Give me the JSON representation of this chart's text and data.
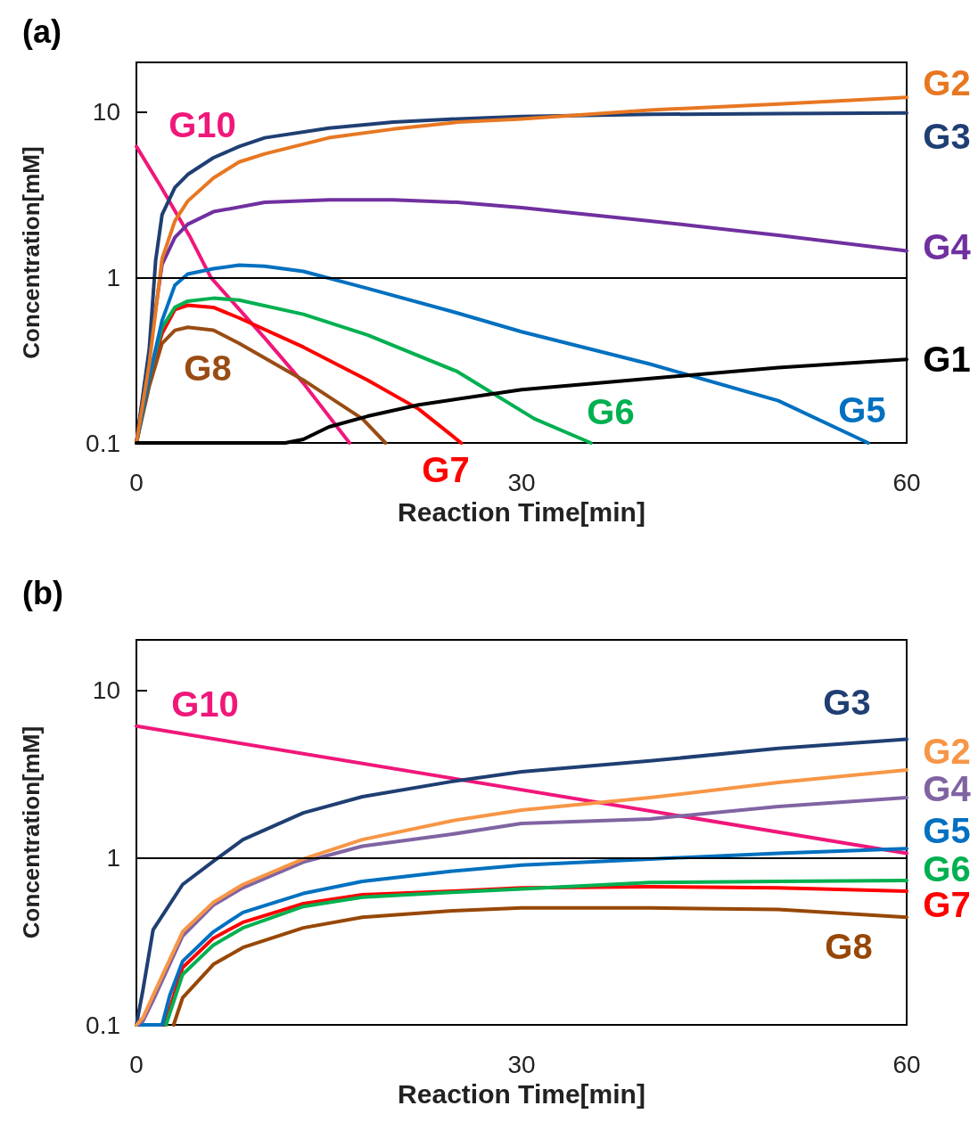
{
  "chart_data": [
    {
      "type": "line",
      "title": "(a)",
      "xlabel": "Reaction Time[min]",
      "ylabel": "Concentration[mM]",
      "xlim": [
        0,
        60
      ],
      "xticks": [
        0,
        30,
        60
      ],
      "ylim": [
        0.1,
        20
      ],
      "yticks": [
        0.1,
        1,
        10
      ],
      "log": "y",
      "grid": false,
      "marker": "none",
      "line_style": "solid",
      "ref_lines": [
        {
          "axis": "y",
          "value": 1,
          "color": "#000000"
        }
      ],
      "series": [
        {
          "name": "G1",
          "color": "#000000",
          "x": [
            0,
            11.6,
            13,
            15,
            18,
            22,
            30,
            40,
            50,
            60
          ],
          "values": [
            0.1,
            0.1,
            0.105,
            0.125,
            0.145,
            0.17,
            0.21,
            0.245,
            0.285,
            0.32
          ]
        },
        {
          "name": "G2",
          "color": "#e87722",
          "x": [
            0,
            1,
            2,
            3,
            4,
            6,
            8,
            10,
            15,
            20,
            25,
            30,
            40,
            50,
            60
          ],
          "values": [
            0.1,
            0.3,
            1.3,
            2.2,
            2.9,
            4.0,
            5.0,
            5.6,
            7.0,
            7.9,
            8.7,
            9.1,
            10.3,
            11.2,
            12.3
          ]
        },
        {
          "name": "G3",
          "color": "#1f3f73",
          "x": [
            0,
            1,
            1.5,
            2,
            3,
            4,
            6,
            8,
            10,
            15,
            20,
            25,
            30,
            40,
            50,
            60
          ],
          "values": [
            0.1,
            0.37,
            1.27,
            2.4,
            3.5,
            4.2,
            5.3,
            6.2,
            7.0,
            8.0,
            8.7,
            9.1,
            9.4,
            9.7,
            9.8,
            9.9
          ]
        },
        {
          "name": "G4",
          "color": "#7030a0",
          "x": [
            0,
            1,
            2,
            3,
            4,
            6,
            10,
            15,
            20,
            25,
            30,
            40,
            50,
            60
          ],
          "values": [
            0.1,
            0.35,
            1.2,
            1.75,
            2.1,
            2.5,
            2.85,
            2.95,
            2.95,
            2.85,
            2.65,
            2.2,
            1.8,
            1.45
          ]
        },
        {
          "name": "G5",
          "color": "#0070c0",
          "x": [
            0,
            1,
            2,
            3,
            4,
            6,
            8,
            10,
            13,
            18,
            25,
            30,
            40,
            50,
            57
          ],
          "values": [
            0.1,
            0.25,
            0.55,
            0.9,
            1.05,
            1.13,
            1.19,
            1.17,
            1.09,
            0.86,
            0.61,
            0.47,
            0.3,
            0.18,
            0.1
          ]
        },
        {
          "name": "G6",
          "color": "#00b050",
          "x": [
            0,
            1,
            2,
            3,
            4,
            6,
            8,
            13,
            18,
            25,
            31,
            35.4
          ],
          "values": [
            0.1,
            0.25,
            0.5,
            0.66,
            0.72,
            0.75,
            0.73,
            0.6,
            0.45,
            0.27,
            0.14,
            0.1
          ]
        },
        {
          "name": "G7",
          "color": "#ff0000",
          "x": [
            0,
            1,
            2,
            3,
            4,
            6,
            8,
            13,
            18,
            22,
            25.3
          ],
          "values": [
            0.1,
            0.25,
            0.46,
            0.64,
            0.68,
            0.66,
            0.57,
            0.38,
            0.24,
            0.16,
            0.1
          ]
        },
        {
          "name": "G8",
          "color": "#994c14",
          "x": [
            0,
            1,
            2,
            3,
            4,
            6,
            8,
            13,
            17.6,
            19.4
          ],
          "values": [
            0.1,
            0.22,
            0.4,
            0.48,
            0.5,
            0.48,
            0.4,
            0.24,
            0.14,
            0.1
          ]
        },
        {
          "name": "G10",
          "color": "#f0177a",
          "x": [
            0,
            1.9,
            4.2,
            5.8,
            10,
            13,
            16.6
          ],
          "values": [
            6.2,
            3.55,
            1.75,
            1.0,
            0.43,
            0.23,
            0.1
          ]
        }
      ]
    },
    {
      "type": "line",
      "title": "(b)",
      "xlabel": "Reaction Time[min]",
      "ylabel": "Concentration[mM]",
      "xlim": [
        0,
        60
      ],
      "xticks": [
        0,
        30,
        60
      ],
      "ylim": [
        0.1,
        20
      ],
      "yticks": [
        0.1,
        1,
        10
      ],
      "log": "y",
      "grid": false,
      "marker": "none",
      "line_style": "solid",
      "ref_lines": [
        {
          "axis": "y",
          "value": 1,
          "color": "#000000"
        }
      ],
      "series": [
        {
          "name": "G2",
          "color": "#f79646",
          "x": [
            0,
            0.5,
            1.3,
            3.6,
            6,
            8.3,
            13,
            17.6,
            24.6,
            30,
            40,
            50,
            60
          ],
          "values": [
            0.1,
            0.11,
            0.15,
            0.36,
            0.54,
            0.69,
            0.98,
            1.28,
            1.66,
            1.92,
            2.28,
            2.81,
            3.34
          ]
        },
        {
          "name": "G3",
          "color": "#1f3f73",
          "x": [
            0,
            0.5,
            1.3,
            3.6,
            6,
            8.3,
            13,
            17.6,
            24.6,
            30,
            40,
            50,
            60
          ],
          "values": [
            0.1,
            0.16,
            0.37,
            0.69,
            0.95,
            1.28,
            1.85,
            2.31,
            2.85,
            3.26,
            3.78,
            4.49,
            5.1
          ]
        },
        {
          "name": "G4",
          "color": "#8064a2",
          "x": [
            0,
            0.5,
            1.3,
            3.6,
            6,
            8.3,
            13,
            17.6,
            24.6,
            30,
            40,
            50,
            60
          ],
          "values": [
            0.1,
            0.105,
            0.14,
            0.34,
            0.52,
            0.66,
            0.94,
            1.17,
            1.38,
            1.6,
            1.7,
            2.02,
            2.28
          ]
        },
        {
          "name": "G5",
          "color": "#0070c0",
          "x": [
            0,
            2,
            2.6,
            3.6,
            6,
            8.3,
            13,
            17.6,
            24.6,
            30,
            40,
            50,
            60
          ],
          "values": [
            0.1,
            0.1,
            0.15,
            0.24,
            0.36,
            0.47,
            0.61,
            0.72,
            0.83,
            0.9,
            0.98,
            1.06,
            1.13
          ]
        },
        {
          "name": "G6",
          "color": "#00b050",
          "x": [
            2.3,
            3.6,
            6,
            8.3,
            13,
            17.6,
            24.6,
            30,
            40,
            50,
            60
          ],
          "values": [
            0.1,
            0.2,
            0.3,
            0.38,
            0.51,
            0.58,
            0.62,
            0.65,
            0.71,
            0.72,
            0.73
          ]
        },
        {
          "name": "G7",
          "color": "#ff0000",
          "x": [
            0,
            2.2,
            3.6,
            6,
            8.3,
            13,
            17.6,
            24.6,
            30,
            40,
            50,
            60
          ],
          "values": [
            0.1,
            0.1,
            0.22,
            0.33,
            0.41,
            0.53,
            0.6,
            0.63,
            0.66,
            0.67,
            0.66,
            0.63
          ]
        },
        {
          "name": "G8",
          "color": "#974706",
          "x": [
            2.9,
            3.6,
            6,
            8.3,
            13,
            17.6,
            24.6,
            30,
            40,
            50,
            60
          ],
          "values": [
            0.1,
            0.145,
            0.23,
            0.29,
            0.38,
            0.44,
            0.48,
            0.5,
            0.5,
            0.49,
            0.44
          ]
        },
        {
          "name": "G10",
          "color": "#f0177a",
          "x": [
            0,
            60
          ],
          "values": [
            6.1,
            1.06
          ]
        }
      ]
    }
  ]
}
